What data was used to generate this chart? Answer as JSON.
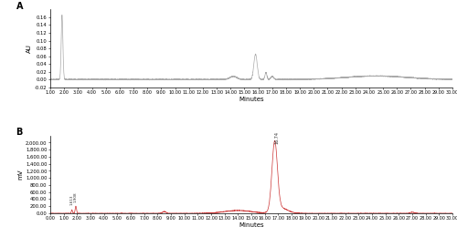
{
  "panel_A": {
    "label": "A",
    "ylabel": "AU",
    "xlabel": "Minutes",
    "ylim": [
      -0.02,
      0.18
    ],
    "xlim": [
      1.0,
      30.0
    ],
    "yticks": [
      -0.02,
      0.0,
      0.02,
      0.04,
      0.06,
      0.08,
      0.1,
      0.12,
      0.14,
      0.16
    ],
    "xticks": [
      1,
      2,
      3,
      4,
      5,
      6,
      7,
      8,
      9,
      10,
      11,
      12,
      13,
      14,
      15,
      16,
      17,
      18,
      19,
      20,
      21,
      22,
      23,
      24,
      25,
      26,
      27,
      28,
      29,
      30
    ],
    "xtick_labels": [
      "1.00",
      "2.00",
      "3.00",
      "4.00",
      "5.00",
      "6.00",
      "7.00",
      "8.00",
      "9.00",
      "10.00",
      "11.00",
      "12.00",
      "13.00",
      "14.00",
      "15.00",
      "16.00",
      "17.00",
      "18.00",
      "19.00",
      "20.00",
      "21.00",
      "22.00",
      "23.00",
      "24.00",
      "25.00",
      "26.00",
      "27.00",
      "28.00",
      "29.00",
      "30.00"
    ],
    "line_color": "#aaaaaa",
    "background_color": "#ffffff"
  },
  "panel_B": {
    "label": "B",
    "ylabel": "mV",
    "xlabel": "Minutes",
    "ylim": [
      0,
      2200
    ],
    "xlim": [
      0.0,
      30.0
    ],
    "yticks": [
      0,
      200,
      400,
      600,
      800,
      1000,
      1200,
      1400,
      1600,
      1800,
      2000
    ],
    "ytick_labels": [
      "0.00",
      "200.00",
      "400.00",
      "600.00",
      "800.00",
      "1,000.00",
      "1,200.00",
      "1,400.00",
      "1,600.00",
      "1,800.00",
      "2,000.00"
    ],
    "xticks": [
      0,
      1,
      2,
      3,
      4,
      5,
      6,
      7,
      8,
      9,
      10,
      11,
      12,
      13,
      14,
      15,
      16,
      17,
      18,
      19,
      20,
      21,
      22,
      23,
      24,
      25,
      26,
      27,
      28,
      29,
      30
    ],
    "xtick_labels": [
      "0.00",
      "1.00",
      "2.00",
      "3.00",
      "4.00",
      "5.00",
      "6.00",
      "7.00",
      "8.00",
      "9.00",
      "10.00",
      "11.00",
      "12.00",
      "13.00",
      "14.00",
      "15.00",
      "16.00",
      "17.00",
      "18.00",
      "19.00",
      "20.00",
      "21.00",
      "22.00",
      "23.00",
      "24.00",
      "25.00",
      "26.00",
      "27.00",
      "28.00",
      "29.00",
      "30.00"
    ],
    "line_color": "#cc3333",
    "background_color": "#ffffff",
    "peak1_x": 1.613,
    "peak2_x": 1.908,
    "main_peak_x": 16.74,
    "annotation1": "1.613",
    "annotation2": "1.908",
    "annotation_main": "16.74"
  }
}
